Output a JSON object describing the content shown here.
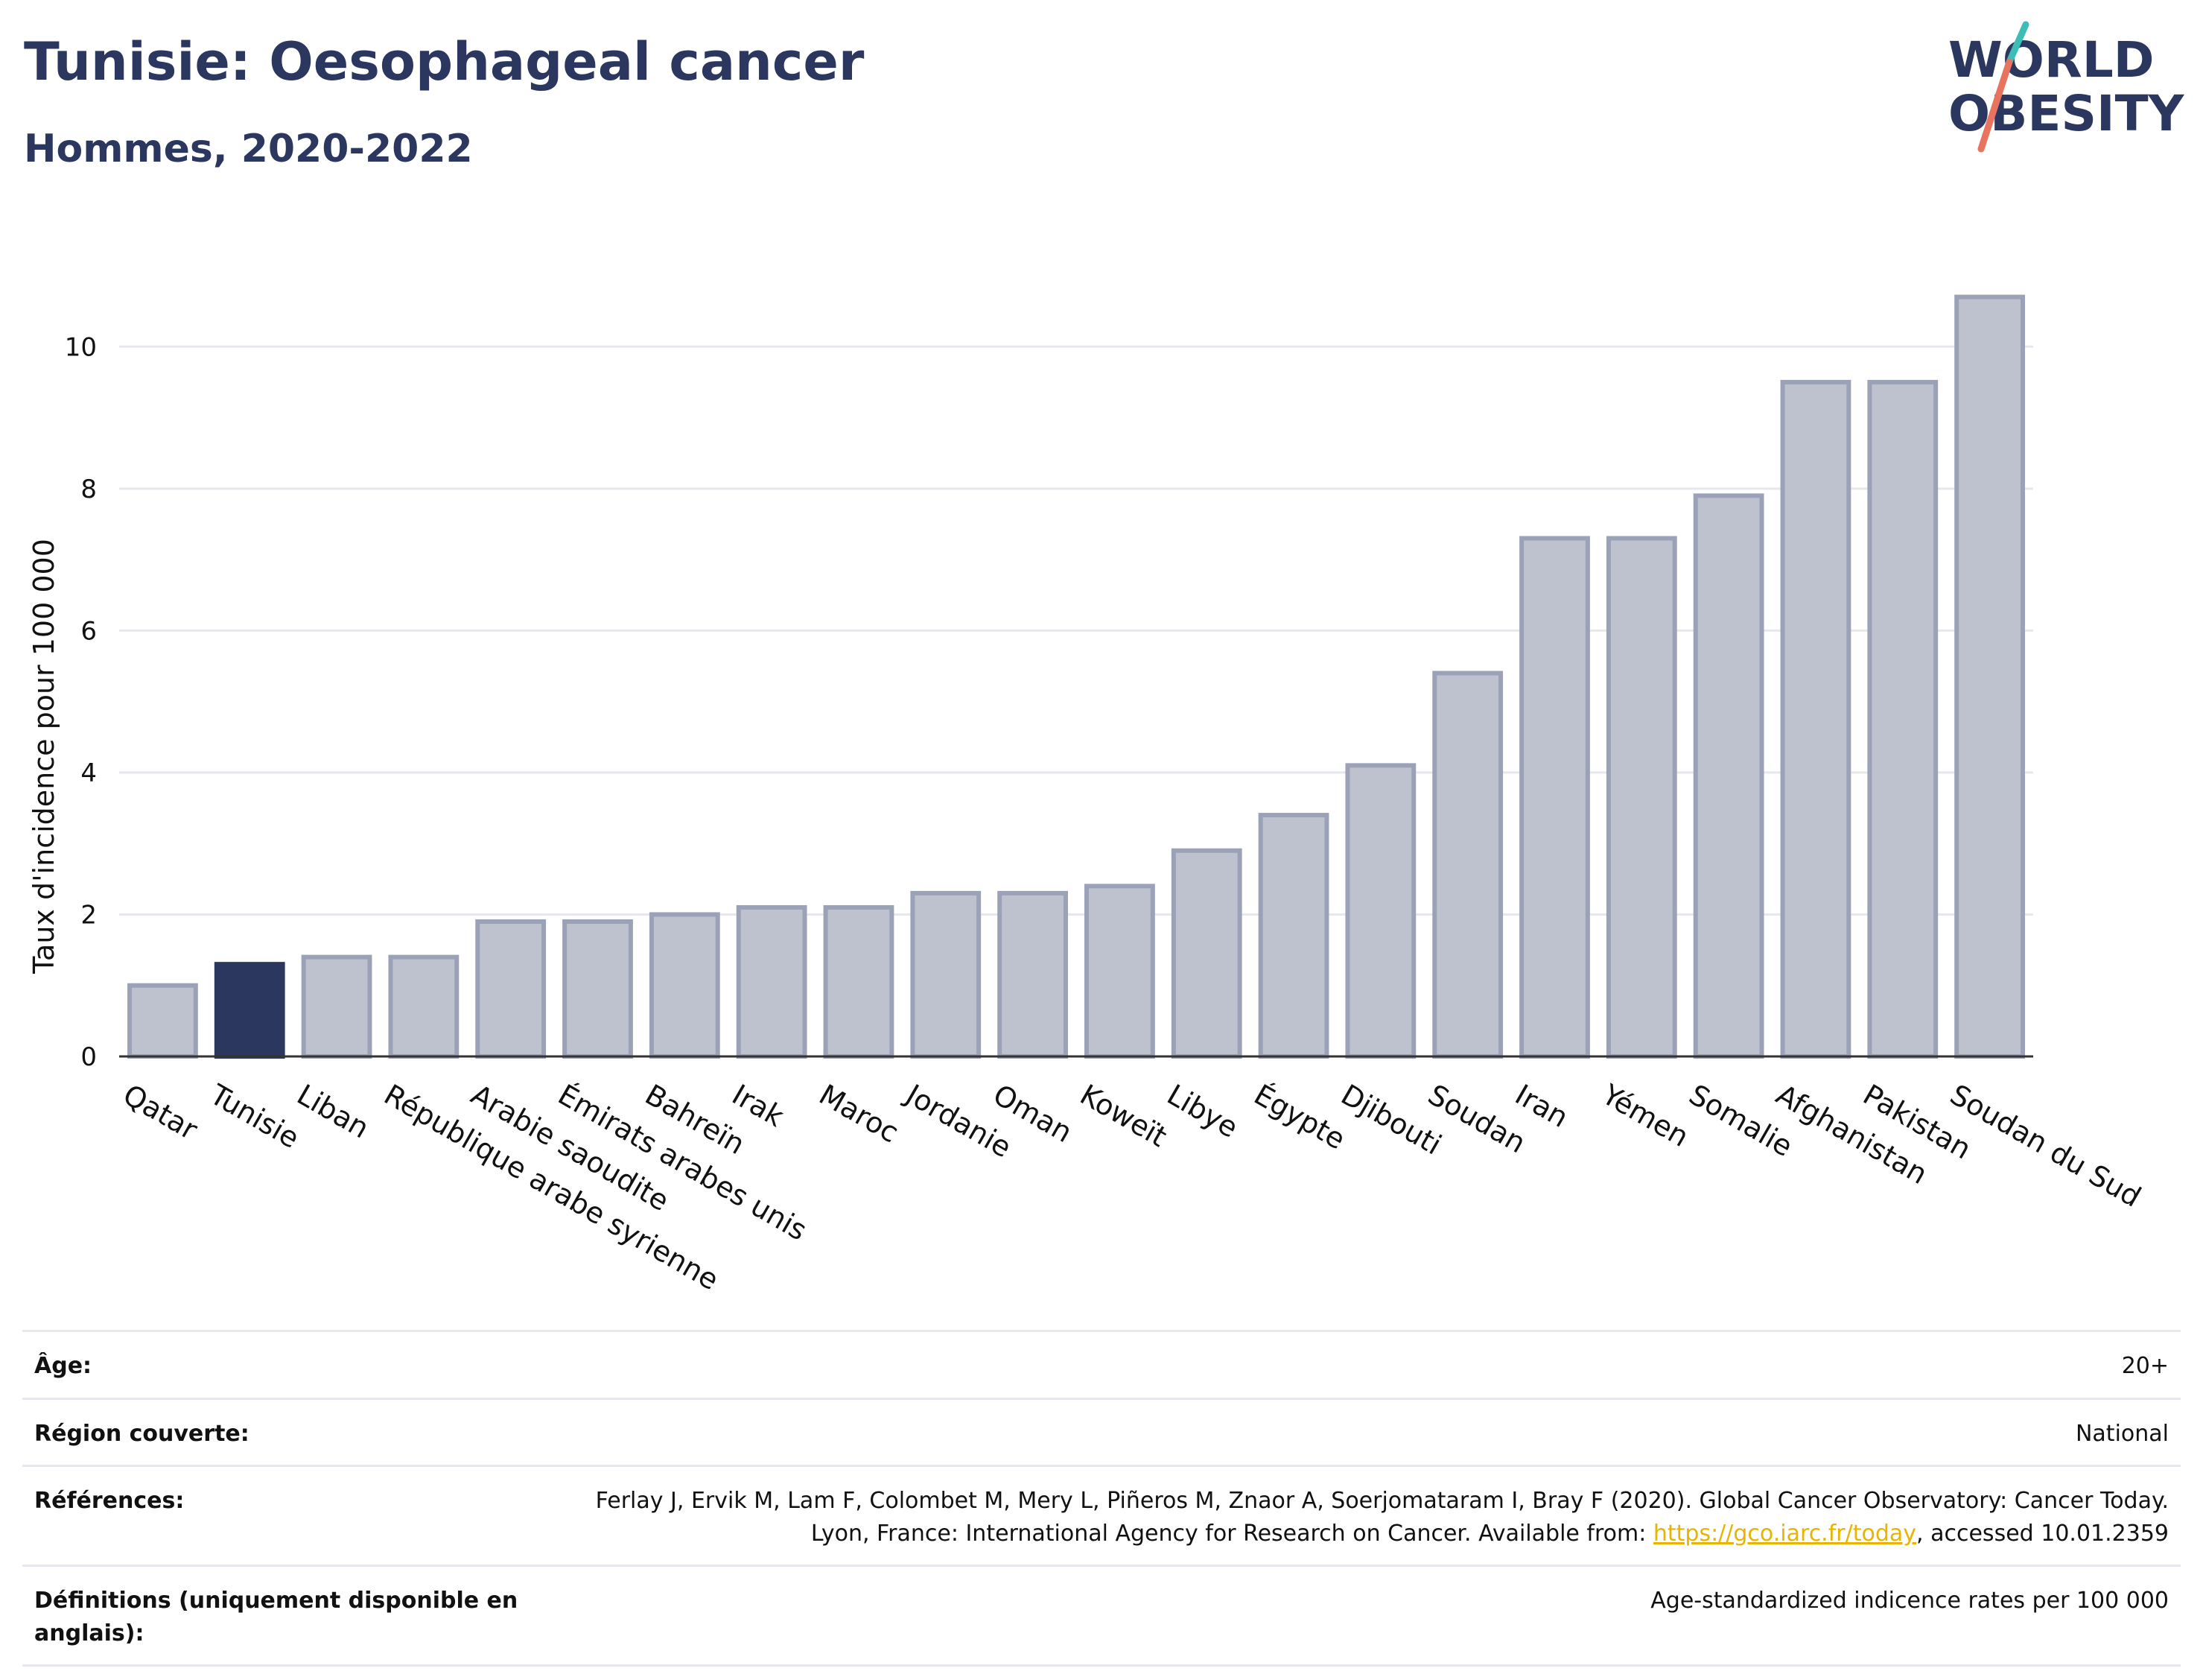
{
  "header": {
    "title": "Tunisie: Oesophageal cancer",
    "subtitle": "Hommes, 2020-2022"
  },
  "logo": {
    "line1": "WORLD",
    "line2": "OBESITY",
    "colors": {
      "text": "#2c375f",
      "slash_top": "#3dbdb8",
      "slash_bottom": "#e8735f"
    }
  },
  "colors": {
    "bar_default": "#bec2cf",
    "bar_border": "#9ba1b6",
    "bar_highlight": "#2c375f",
    "grid": "#e6e8ee",
    "axis": "#333333"
  },
  "chart_data": {
    "type": "bar",
    "ylabel": "Taux d'incidence pour 100 000",
    "xlabel": "",
    "ylim": [
      0,
      11
    ],
    "yticks": [
      0,
      2,
      4,
      6,
      8,
      10
    ],
    "grid": true,
    "highlight": "Tunisie",
    "categories": [
      "Qatar",
      "Tunisie",
      "Liban",
      "République arabe syrienne",
      "Arabie saoudite",
      "Émirats arabes unis",
      "Bahreïn",
      "Irak",
      "Maroc",
      "Jordanie",
      "Oman",
      "Koweït",
      "Libye",
      "Égypte",
      "Djibouti",
      "Soudan",
      "Iran",
      "Yémen",
      "Somalie",
      "Afghanistan",
      "Pakistan",
      "Soudan du Sud"
    ],
    "values": [
      1.0,
      1.3,
      1.4,
      1.4,
      1.9,
      1.9,
      2.0,
      2.1,
      2.1,
      2.3,
      2.3,
      2.4,
      2.9,
      3.4,
      4.1,
      5.4,
      7.3,
      7.3,
      7.9,
      9.5,
      9.5,
      10.7
    ]
  },
  "meta": {
    "age_label": "Âge:",
    "age_value": "20+",
    "region_label": "Région couverte:",
    "region_value": "National",
    "refs_label": "Références:",
    "refs_text_before": "Ferlay J, Ervik M, Lam F, Colombet M, Mery L, Piñeros M, Znaor A, Soerjomataram I, Bray F (2020). Global Cancer Observatory: Cancer Today. Lyon, France: International Agency for Research on Cancer. Available from: ",
    "refs_link": "https://gco.iarc.fr/today",
    "refs_text_after": ", accessed 10.01.2359",
    "defs_label": "Définitions (uniquement disponible en anglais):",
    "defs_value": "Age-standardized indicence rates per 100 000"
  }
}
